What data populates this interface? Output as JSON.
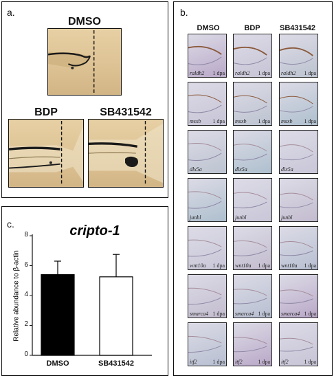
{
  "panel_a": {
    "label": "a.",
    "dmso_title": "DMSO",
    "bdp_title": "BDP",
    "sb_title": "SB431542"
  },
  "panel_b": {
    "label": "b.",
    "columns": [
      "DMSO",
      "BDP",
      "SB431542"
    ],
    "genes": [
      "raldh2",
      "msxb",
      "dlx5a",
      "junbl",
      "wnt10a",
      "smarca4",
      "itf2"
    ],
    "dpa_label": "1 dpa",
    "palette": [
      "#b9a8c8",
      "#c7c4d6",
      "#bcc3d0",
      "#aebfce",
      "#c9c7d8",
      "#c3bccf",
      "#b7bfd1"
    ]
  },
  "panel_c": {
    "label": "c.",
    "chart_data": {
      "type": "bar",
      "title": "cripto-1",
      "ylabel": "Relative abundance to β-actin",
      "xlabel": "",
      "categories": [
        "DMSO",
        "SB431542"
      ],
      "values": [
        5.4,
        5.25
      ],
      "errors": [
        0.9,
        1.5
      ],
      "colors": [
        "#000000",
        "#ffffff"
      ],
      "ylim": [
        0,
        8
      ],
      "yticks": [
        "0",
        "2",
        "4",
        "6",
        "8"
      ],
      "grid": false
    }
  }
}
